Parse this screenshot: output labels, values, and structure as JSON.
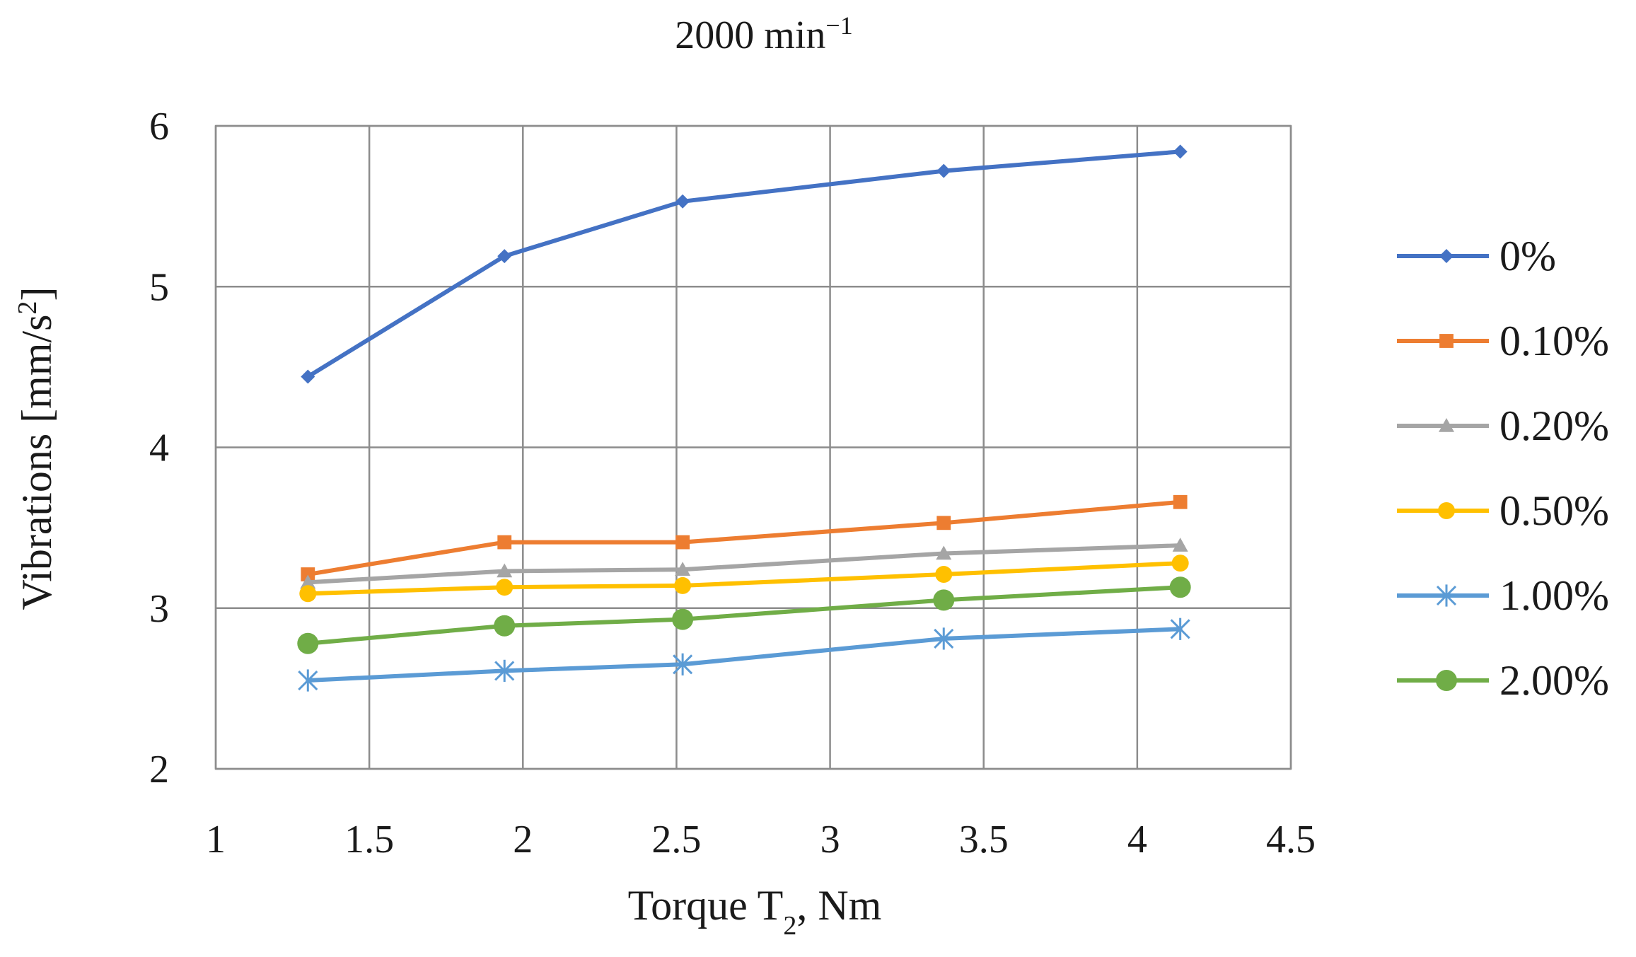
{
  "chart_data": {
    "type": "line",
    "title": "2000 min",
    "title_superscript": "−1",
    "xlabel": "Torque T",
    "xlabel_subscript": "2",
    "xlabel_suffix": ", Nm",
    "ylabel": "Vibrations [mm/s",
    "ylabel_superscript": "2",
    "ylabel_suffix": "]",
    "xlim": [
      1,
      4.5
    ],
    "ylim": [
      2,
      6
    ],
    "xticks": [
      1,
      1.5,
      2,
      2.5,
      3,
      3.5,
      4,
      4.5
    ],
    "xtick_labels": [
      "1",
      "1.5",
      "2",
      "2.5",
      "3",
      "3.5",
      "4",
      "4.5"
    ],
    "yticks": [
      2,
      3,
      4,
      5,
      6
    ],
    "ytick_labels": [
      "2",
      "3",
      "4",
      "5",
      "6"
    ],
    "grid": true,
    "legend_position": "right",
    "x": [
      1.3,
      1.94,
      2.52,
      3.37,
      4.14
    ],
    "series": [
      {
        "name": "0%",
        "color": "#4472C4",
        "marker": "diamond",
        "values": [
          4.44,
          5.19,
          5.53,
          5.72,
          5.84
        ]
      },
      {
        "name": "0.10%",
        "color": "#ED7D31",
        "marker": "square",
        "values": [
          3.21,
          3.41,
          3.41,
          3.53,
          3.66
        ]
      },
      {
        "name": "0.20%",
        "color": "#A5A5A5",
        "marker": "triangle",
        "values": [
          3.16,
          3.23,
          3.24,
          3.34,
          3.39
        ]
      },
      {
        "name": "0.50%",
        "color": "#FFC000",
        "marker": "circle",
        "values": [
          3.09,
          3.13,
          3.14,
          3.21,
          3.28
        ]
      },
      {
        "name": "1.00%",
        "color": "#5B9BD5",
        "marker": "asterisk",
        "values": [
          2.55,
          2.61,
          2.65,
          2.81,
          2.87
        ]
      },
      {
        "name": "2.00%",
        "color": "#70AD47",
        "marker": "circle",
        "values": [
          2.78,
          2.89,
          2.93,
          3.05,
          3.13
        ]
      }
    ]
  }
}
